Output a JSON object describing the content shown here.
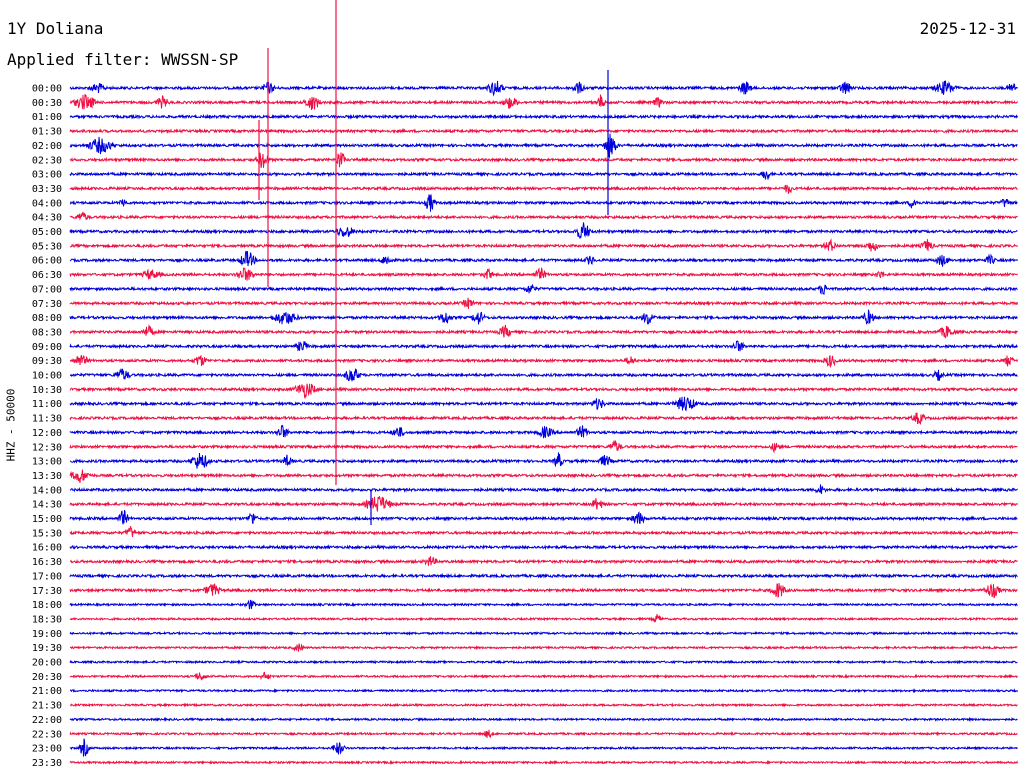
{
  "header": {
    "station": "1Y Doliana",
    "date": "2025-12-31",
    "filter_label": "Applied filter:",
    "filter_name": "WWSSN-SP"
  },
  "axis": {
    "channel_label": "HHZ - 50000",
    "time_labels": [
      "00:00",
      "00:30",
      "01:00",
      "01:30",
      "02:00",
      "02:30",
      "03:00",
      "03:30",
      "04:00",
      "04:30",
      "05:00",
      "05:30",
      "06:00",
      "06:30",
      "07:00",
      "07:30",
      "08:00",
      "08:30",
      "09:00",
      "09:30",
      "10:00",
      "10:30",
      "11:00",
      "11:30",
      "12:00",
      "12:30",
      "13:00",
      "13:30",
      "14:00",
      "14:30",
      "15:00",
      "15:30",
      "16:00",
      "16:30",
      "17:00",
      "17:30",
      "18:00",
      "18:30",
      "19:00",
      "19:30",
      "20:00",
      "20:30",
      "21:00",
      "21:30",
      "22:00",
      "22:30",
      "23:00",
      "23:30"
    ]
  },
  "colors": {
    "trace_a": "#0000dd",
    "trace_b": "#ee1144",
    "text": "#000000"
  }
}
